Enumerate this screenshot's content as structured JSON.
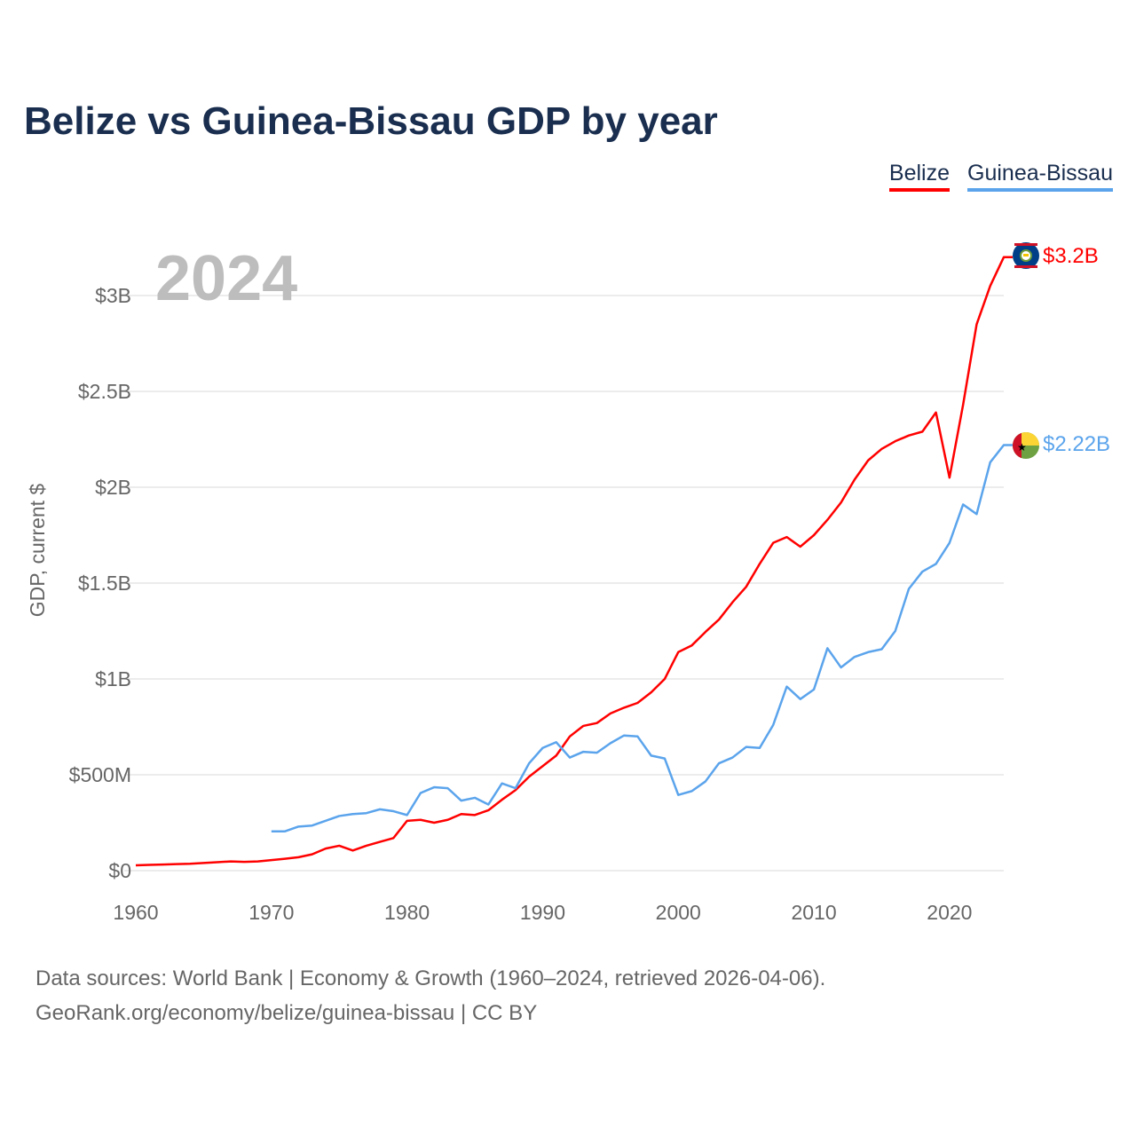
{
  "title": "Belize vs Guinea-Bissau GDP by year",
  "year_watermark": "2024",
  "legend": [
    "Belize",
    "Guinea-Bissau"
  ],
  "end_labels": {
    "belize": "$3.2B",
    "guinea_bissau": "$2.22B"
  },
  "source_line1": "Data sources: World Bank | Economy & Growth (1960–2024, retrieved 2026-04-06).",
  "source_line2": "GeoRank.org/economy/belize/guinea-bissau | CC BY",
  "chart_data": {
    "type": "line",
    "title": "Belize vs Guinea-Bissau GDP by year",
    "xlabel": "",
    "ylabel": "GDP, current $",
    "xlim": [
      1960,
      2024
    ],
    "ylim": [
      0,
      3.3
    ],
    "x_ticks": [
      1960,
      1970,
      1980,
      1990,
      2000,
      2010,
      2020
    ],
    "y_ticks": [
      {
        "v": 0,
        "label": "$0"
      },
      {
        "v": 0.5,
        "label": "$500M"
      },
      {
        "v": 1,
        "label": "$1B"
      },
      {
        "v": 1.5,
        "label": "$1.5B"
      },
      {
        "v": 2,
        "label": "$2B"
      },
      {
        "v": 2.5,
        "label": "$2.5B"
      },
      {
        "v": 3,
        "label": "$3B"
      }
    ],
    "units": "billions USD",
    "grid": true,
    "legend_position": "top-right",
    "series": [
      {
        "name": "Belize",
        "color": "#ff0000",
        "start": 1960,
        "values": [
          0.028,
          0.03,
          0.032,
          0.034,
          0.036,
          0.04,
          0.044,
          0.048,
          0.046,
          0.048,
          0.055,
          0.062,
          0.07,
          0.085,
          0.115,
          0.13,
          0.105,
          0.13,
          0.15,
          0.17,
          0.26,
          0.265,
          0.25,
          0.265,
          0.295,
          0.29,
          0.315,
          0.37,
          0.42,
          0.49,
          0.545,
          0.6,
          0.7,
          0.755,
          0.77,
          0.82,
          0.85,
          0.875,
          0.93,
          1.0,
          1.14,
          1.175,
          1.245,
          1.31,
          1.4,
          1.48,
          1.6,
          1.71,
          1.74,
          1.69,
          1.75,
          1.83,
          1.92,
          2.04,
          2.14,
          2.2,
          2.24,
          2.27,
          2.29,
          2.39,
          2.05,
          2.43,
          2.85,
          3.05,
          3.2
        ]
      },
      {
        "name": "Guinea-Bissau",
        "color": "#5ba4ec",
        "start": 1970,
        "values": [
          0.205,
          0.205,
          0.23,
          0.235,
          0.26,
          0.285,
          0.295,
          0.3,
          0.32,
          0.31,
          0.29,
          0.405,
          0.435,
          0.43,
          0.365,
          0.38,
          0.345,
          0.455,
          0.43,
          0.56,
          0.64,
          0.67,
          0.59,
          0.62,
          0.615,
          0.665,
          0.705,
          0.7,
          0.6,
          0.585,
          0.395,
          0.415,
          0.465,
          0.56,
          0.59,
          0.645,
          0.64,
          0.76,
          0.96,
          0.895,
          0.945,
          1.16,
          1.06,
          1.115,
          1.14,
          1.155,
          1.25,
          1.47,
          1.56,
          1.6,
          1.71,
          1.91,
          1.86,
          2.13,
          2.22
        ]
      }
    ]
  }
}
